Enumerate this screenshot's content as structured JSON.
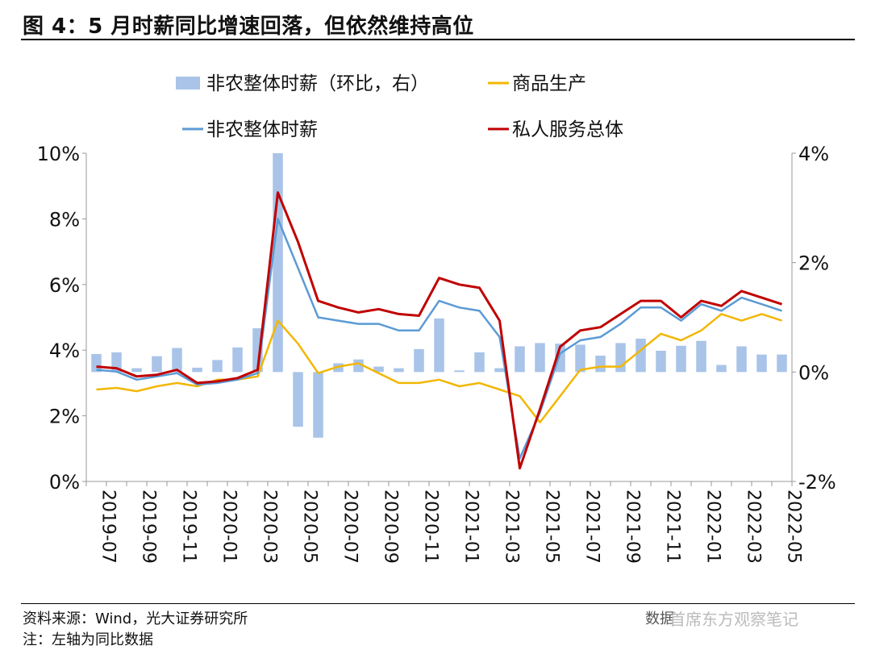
{
  "header": {
    "title": "图 4：5 月时薪同比增速回落，但依然维持高位"
  },
  "footer": {
    "source": "资料来源：Wind，光大证券研究所",
    "note": "注：左轴为同比数据",
    "watermark_left": "数据",
    "watermark_right": "首席东方观察笔记"
  },
  "colors": {
    "bar": "#a9c4e8",
    "goods": "#f2b705",
    "nonfarm": "#5b9bd5",
    "private": "#c00000"
  },
  "chart_data": {
    "type": "bar+line",
    "categories": [
      "2019-07",
      "2019-08",
      "2019-09",
      "2019-10",
      "2019-11",
      "2019-12",
      "2020-01",
      "2020-02",
      "2020-03",
      "2020-04",
      "2020-05",
      "2020-06",
      "2020-07",
      "2020-08",
      "2020-09",
      "2020-10",
      "2020-11",
      "2020-12",
      "2021-01",
      "2021-02",
      "2021-03",
      "2021-04",
      "2021-05",
      "2021-06",
      "2021-07",
      "2021-08",
      "2021-09",
      "2021-10",
      "2021-11",
      "2021-12",
      "2022-01",
      "2022-02",
      "2022-03",
      "2022-04",
      "2022-05"
    ],
    "tick_labels": [
      "2019-07",
      "2019-09",
      "2019-11",
      "2020-01",
      "2020-03",
      "2020-05",
      "2020-07",
      "2020-09",
      "2020-11",
      "2021-01",
      "2021-03",
      "2021-05",
      "2021-07",
      "2021-09",
      "2021-11",
      "2022-01",
      "2022-03",
      "2022-05"
    ],
    "y_left": {
      "min": 0,
      "max": 10,
      "ticks": [
        "0%",
        "2%",
        "4%",
        "6%",
        "8%",
        "10%"
      ]
    },
    "y_right": {
      "min": -2,
      "max": 4,
      "ticks": [
        "-2%",
        "0%",
        "2%",
        "4%"
      ]
    },
    "legend": {
      "placement": "top",
      "items": [
        {
          "label": "非农整体时薪（环比，右）",
          "kind": "bar"
        },
        {
          "label": "商品生产",
          "kind": "line"
        },
        {
          "label": "非农整体时薪",
          "kind": "line"
        },
        {
          "label": "私人服务总体",
          "kind": "line"
        }
      ]
    },
    "series": [
      {
        "name": "非农整体时薪（环比，右）",
        "axis": "right",
        "kind": "bar",
        "values": [
          0.33,
          0.36,
          0.07,
          0.29,
          0.44,
          0.08,
          0.22,
          0.45,
          0.8,
          4.0,
          -1.0,
          -1.2,
          0.16,
          0.23,
          0.1,
          0.07,
          0.42,
          0.98,
          0.03,
          0.36,
          0.07,
          0.47,
          0.53,
          0.52,
          0.5,
          0.3,
          0.53,
          0.61,
          0.39,
          0.48,
          0.57,
          0.13,
          0.47,
          0.32,
          0.32
        ]
      },
      {
        "name": "商品生产",
        "axis": "left",
        "kind": "line",
        "values": [
          2.8,
          2.85,
          2.75,
          2.9,
          3.0,
          2.9,
          3.1,
          3.1,
          3.2,
          4.9,
          4.2,
          3.3,
          3.5,
          3.6,
          3.3,
          3.0,
          3.0,
          3.1,
          2.9,
          3.0,
          2.8,
          2.6,
          1.8,
          2.6,
          3.4,
          3.5,
          3.5,
          4.0,
          4.5,
          4.3,
          4.6,
          5.1,
          4.9,
          5.1,
          4.9
        ]
      },
      {
        "name": "非农整体时薪",
        "axis": "left",
        "kind": "line",
        "values": [
          3.4,
          3.35,
          3.1,
          3.2,
          3.3,
          2.95,
          3.0,
          3.1,
          3.3,
          8.0,
          6.5,
          5.0,
          4.9,
          4.8,
          4.8,
          4.6,
          4.6,
          5.5,
          5.3,
          5.2,
          4.4,
          0.7,
          2.1,
          3.9,
          4.3,
          4.4,
          4.8,
          5.3,
          5.3,
          4.9,
          5.4,
          5.2,
          5.6,
          5.4,
          5.2
        ]
      },
      {
        "name": "私人服务总体",
        "axis": "left",
        "kind": "line",
        "values": [
          3.5,
          3.45,
          3.2,
          3.25,
          3.4,
          3.0,
          3.05,
          3.15,
          3.4,
          8.8,
          7.3,
          5.5,
          5.3,
          5.15,
          5.25,
          5.1,
          5.05,
          6.2,
          6.0,
          5.9,
          4.9,
          0.4,
          2.2,
          4.1,
          4.6,
          4.7,
          5.1,
          5.5,
          5.5,
          5.0,
          5.5,
          5.35,
          5.8,
          5.6,
          5.4
        ]
      }
    ]
  }
}
